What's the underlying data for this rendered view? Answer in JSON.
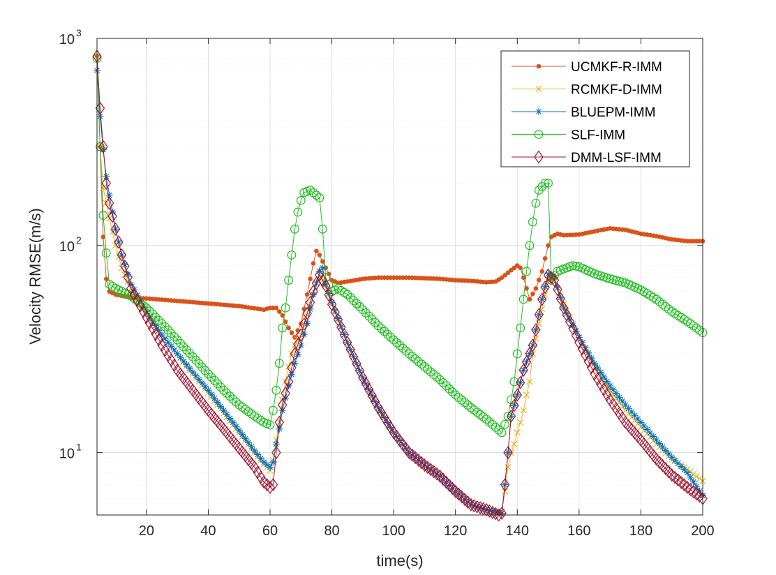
{
  "chart_data": {
    "type": "line",
    "title": "",
    "xlabel": "time(s)",
    "ylabel": "Velocity RMSE(m/s)",
    "xlim": [
      4,
      200
    ],
    "ylim": [
      5,
      1000
    ],
    "yscale": "log",
    "grid": true,
    "legend_position": "top-right",
    "x_ticks": [
      20,
      40,
      60,
      80,
      100,
      120,
      140,
      160,
      180,
      200
    ],
    "x_tick_labels": [
      "20",
      "40",
      "60",
      "80",
      "100",
      "120",
      "140",
      "160",
      "180",
      "200"
    ],
    "y_ticks": [
      {
        "value": 10,
        "base": "10",
        "exp": "1"
      },
      {
        "value": 100,
        "base": "10",
        "exp": "2"
      },
      {
        "value": 1000,
        "base": "10",
        "exp": "3"
      }
    ],
    "series": [
      {
        "name": "UCMKF-R-IMM",
        "color": "#D95319",
        "marker": "dot",
        "every": 1,
        "points": [
          [
            4,
            820
          ],
          [
            5,
            300
          ],
          [
            6,
            110
          ],
          [
            7,
            69
          ],
          [
            8,
            60
          ],
          [
            10,
            58
          ],
          [
            15,
            56
          ],
          [
            20,
            55.5
          ],
          [
            30,
            54
          ],
          [
            40,
            52.5
          ],
          [
            50,
            51
          ],
          [
            58,
            49
          ],
          [
            60,
            50
          ],
          [
            62,
            50
          ],
          [
            64,
            46
          ],
          [
            66,
            40
          ],
          [
            68,
            36
          ],
          [
            70,
            42
          ],
          [
            72,
            58
          ],
          [
            74,
            82
          ],
          [
            75,
            94
          ],
          [
            76,
            90
          ],
          [
            78,
            78
          ],
          [
            80,
            68
          ],
          [
            82,
            66
          ],
          [
            85,
            67
          ],
          [
            90,
            69
          ],
          [
            95,
            70
          ],
          [
            100,
            70
          ],
          [
            105,
            70
          ],
          [
            110,
            69.5
          ],
          [
            115,
            69
          ],
          [
            120,
            68
          ],
          [
            125,
            67.5
          ],
          [
            130,
            66.5
          ],
          [
            133,
            67
          ],
          [
            135,
            70
          ],
          [
            138,
            76
          ],
          [
            140,
            80
          ],
          [
            141,
            78
          ],
          [
            142,
            70
          ],
          [
            144,
            55
          ],
          [
            146,
            62
          ],
          [
            148,
            75
          ],
          [
            150,
            100
          ],
          [
            151,
            110
          ],
          [
            153,
            114
          ],
          [
            155,
            112
          ],
          [
            160,
            113
          ],
          [
            165,
            117
          ],
          [
            170,
            121
          ],
          [
            175,
            119
          ],
          [
            180,
            114
          ],
          [
            185,
            111
          ],
          [
            190,
            107
          ],
          [
            195,
            105
          ],
          [
            200,
            105
          ]
        ]
      },
      {
        "name": "RCMKF-D-IMM",
        "color": "#EDB120",
        "marker": "x",
        "every": 1,
        "points": [
          [
            4,
            820
          ],
          [
            5,
            300
          ],
          [
            6,
            190
          ],
          [
            8,
            135
          ],
          [
            10,
            100
          ],
          [
            12,
            78
          ],
          [
            15,
            62
          ],
          [
            20,
            47
          ],
          [
            25,
            37
          ],
          [
            30,
            30
          ],
          [
            35,
            24
          ],
          [
            40,
            19.5
          ],
          [
            45,
            15.5
          ],
          [
            50,
            12.5
          ],
          [
            55,
            10
          ],
          [
            58,
            8.8
          ],
          [
            60,
            8.2
          ],
          [
            61,
            9.2
          ],
          [
            62,
            11.5
          ],
          [
            63,
            14
          ],
          [
            64,
            18
          ],
          [
            65,
            22
          ],
          [
            66,
            26
          ],
          [
            67,
            30
          ],
          [
            68,
            33
          ],
          [
            69,
            35
          ],
          [
            70,
            37
          ],
          [
            72,
            46
          ],
          [
            74,
            60
          ],
          [
            76,
            72
          ],
          [
            78,
            64
          ],
          [
            80,
            52
          ],
          [
            85,
            34
          ],
          [
            90,
            23
          ],
          [
            95,
            16.5
          ],
          [
            100,
            12.5
          ],
          [
            105,
            10
          ],
          [
            110,
            8.7
          ],
          [
            115,
            7.7
          ],
          [
            120,
            6.5
          ],
          [
            125,
            5.6
          ],
          [
            130,
            5.3
          ],
          [
            134,
            5.1
          ],
          [
            135,
            5.2
          ],
          [
            136,
            6.5
          ],
          [
            137,
            8.5
          ],
          [
            138,
            10
          ],
          [
            139,
            11
          ],
          [
            140,
            12.5
          ],
          [
            141,
            14
          ],
          [
            142,
            16
          ],
          [
            143,
            19
          ],
          [
            144,
            22
          ],
          [
            145,
            30
          ],
          [
            147,
            42
          ],
          [
            150,
            68
          ],
          [
            152,
            68
          ],
          [
            155,
            52
          ],
          [
            160,
            36
          ],
          [
            165,
            26
          ],
          [
            170,
            20
          ],
          [
            175,
            16
          ],
          [
            180,
            13.3
          ],
          [
            185,
            11
          ],
          [
            190,
            9.3
          ],
          [
            195,
            8.3
          ],
          [
            200,
            7.3
          ]
        ]
      },
      {
        "name": "BLUEPM-IMM",
        "color": "#0072BD",
        "marker": "asterisk",
        "every": 1,
        "points": [
          [
            4,
            700
          ],
          [
            5,
            420
          ],
          [
            6,
            290
          ],
          [
            7,
            215
          ],
          [
            8,
            175
          ],
          [
            10,
            120
          ],
          [
            12,
            90
          ],
          [
            15,
            65
          ],
          [
            20,
            48
          ],
          [
            25,
            37
          ],
          [
            30,
            30
          ],
          [
            35,
            24.5
          ],
          [
            40,
            20
          ],
          [
            45,
            16
          ],
          [
            50,
            12.8
          ],
          [
            55,
            10.2
          ],
          [
            58,
            9
          ],
          [
            60,
            8.5
          ],
          [
            61,
            9
          ],
          [
            62,
            11
          ],
          [
            63,
            13
          ],
          [
            64,
            16
          ],
          [
            66,
            21
          ],
          [
            68,
            27
          ],
          [
            70,
            33
          ],
          [
            72,
            42
          ],
          [
            74,
            58
          ],
          [
            76,
            75
          ],
          [
            77,
            78
          ],
          [
            78,
            65
          ],
          [
            80,
            53
          ],
          [
            85,
            34
          ],
          [
            90,
            23
          ],
          [
            95,
            16.5
          ],
          [
            100,
            12.5
          ],
          [
            105,
            10
          ],
          [
            110,
            8.7
          ],
          [
            115,
            7.7
          ],
          [
            120,
            6.5
          ],
          [
            125,
            5.6
          ],
          [
            130,
            5.3
          ],
          [
            135,
            5.1
          ],
          [
            136,
            7
          ],
          [
            137,
            10
          ],
          [
            138,
            15
          ],
          [
            140,
            19
          ],
          [
            142,
            25
          ],
          [
            145,
            33
          ],
          [
            148,
            55
          ],
          [
            150,
            73
          ],
          [
            152,
            70
          ],
          [
            155,
            50
          ],
          [
            160,
            36
          ],
          [
            165,
            27
          ],
          [
            170,
            21
          ],
          [
            175,
            17
          ],
          [
            180,
            14
          ],
          [
            185,
            11.5
          ],
          [
            190,
            9.5
          ],
          [
            195,
            8
          ],
          [
            200,
            6.2
          ]
        ]
      },
      {
        "name": "SLF-IMM",
        "color": "#1FBF1F",
        "marker": "circle",
        "every": 1,
        "points": [
          [
            4,
            800
          ],
          [
            5,
            300
          ],
          [
            6,
            140
          ],
          [
            7,
            92
          ],
          [
            8,
            65
          ],
          [
            10,
            62
          ],
          [
            12,
            60
          ],
          [
            15,
            57
          ],
          [
            20,
            50
          ],
          [
            25,
            42
          ],
          [
            30,
            35
          ],
          [
            35,
            29
          ],
          [
            40,
            24
          ],
          [
            45,
            20
          ],
          [
            50,
            17
          ],
          [
            55,
            15
          ],
          [
            58,
            14
          ],
          [
            60,
            13.6
          ],
          [
            61,
            16
          ],
          [
            62,
            20
          ],
          [
            63,
            27
          ],
          [
            64,
            40
          ],
          [
            65,
            50
          ],
          [
            66,
            68
          ],
          [
            67,
            90
          ],
          [
            68,
            120
          ],
          [
            69,
            145
          ],
          [
            70,
            165
          ],
          [
            71,
            180
          ],
          [
            73,
            185
          ],
          [
            75,
            175
          ],
          [
            76,
            170
          ],
          [
            77,
            120
          ],
          [
            78,
            70
          ],
          [
            80,
            60
          ],
          [
            82,
            62
          ],
          [
            85,
            58
          ],
          [
            90,
            49
          ],
          [
            95,
            41
          ],
          [
            100,
            35
          ],
          [
            105,
            30
          ],
          [
            110,
            26
          ],
          [
            115,
            22.5
          ],
          [
            120,
            19
          ],
          [
            125,
            16.5
          ],
          [
            130,
            14.5
          ],
          [
            135,
            12.5
          ],
          [
            137,
            15
          ],
          [
            138,
            18
          ],
          [
            139,
            22
          ],
          [
            140,
            30
          ],
          [
            141,
            40
          ],
          [
            142,
            55
          ],
          [
            143,
            75
          ],
          [
            144,
            100
          ],
          [
            145,
            130
          ],
          [
            146,
            160
          ],
          [
            147,
            185
          ],
          [
            149,
            200
          ],
          [
            150,
            200
          ],
          [
            151,
            68
          ],
          [
            153,
            75
          ],
          [
            155,
            77
          ],
          [
            158,
            80
          ],
          [
            160,
            79
          ],
          [
            165,
            73
          ],
          [
            170,
            69
          ],
          [
            175,
            66
          ],
          [
            180,
            61
          ],
          [
            185,
            55
          ],
          [
            190,
            48
          ],
          [
            195,
            43
          ],
          [
            200,
            38
          ]
        ]
      },
      {
        "name": "DMM-LSF-IMM",
        "color": "#A2142F",
        "marker": "diamond",
        "every": 1,
        "points": [
          [
            4,
            820
          ],
          [
            5,
            460
          ],
          [
            6,
            300
          ],
          [
            7,
            200
          ],
          [
            8,
            160
          ],
          [
            10,
            120
          ],
          [
            12,
            90
          ],
          [
            15,
            62
          ],
          [
            20,
            45
          ],
          [
            25,
            33
          ],
          [
            30,
            25
          ],
          [
            35,
            20
          ],
          [
            40,
            16
          ],
          [
            45,
            13
          ],
          [
            50,
            10.5
          ],
          [
            55,
            8.5
          ],
          [
            58,
            7.2
          ],
          [
            60,
            6.8
          ],
          [
            61,
            7
          ],
          [
            62,
            10
          ],
          [
            63,
            14
          ],
          [
            64,
            17
          ],
          [
            66,
            22
          ],
          [
            68,
            30
          ],
          [
            70,
            37
          ],
          [
            72,
            47
          ],
          [
            74,
            60
          ],
          [
            76,
            72
          ],
          [
            78,
            64
          ],
          [
            80,
            52
          ],
          [
            85,
            34
          ],
          [
            90,
            23
          ],
          [
            95,
            16.5
          ],
          [
            100,
            12.5
          ],
          [
            105,
            10
          ],
          [
            110,
            8.7
          ],
          [
            115,
            7.7
          ],
          [
            120,
            6.5
          ],
          [
            125,
            5.6
          ],
          [
            130,
            5.3
          ],
          [
            134,
            5.0
          ],
          [
            135,
            5.1
          ],
          [
            136,
            7
          ],
          [
            137,
            10
          ],
          [
            138,
            15
          ],
          [
            140,
            19
          ],
          [
            142,
            25
          ],
          [
            145,
            33
          ],
          [
            148,
            55
          ],
          [
            150,
            72
          ],
          [
            152,
            68
          ],
          [
            155,
            50
          ],
          [
            160,
            34
          ],
          [
            165,
            24
          ],
          [
            170,
            18
          ],
          [
            175,
            14
          ],
          [
            180,
            11.5
          ],
          [
            185,
            9.3
          ],
          [
            190,
            7.8
          ],
          [
            195,
            6.8
          ],
          [
            200,
            6
          ]
        ]
      }
    ]
  }
}
